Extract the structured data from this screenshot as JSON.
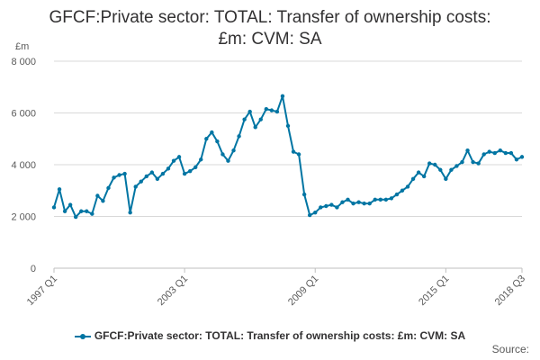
{
  "title_line1": "GFCF:Private sector: TOTAL: Transfer of ownership costs:",
  "title_line2": "£m: CVM: SA",
  "unit_label": "£m",
  "source_label": "Source:",
  "colors": {
    "series": "#0075a3",
    "grid": "#d9d9d9",
    "axis": "#bfbfbf",
    "text": "#5a5a5a"
  },
  "chart_data": {
    "type": "line",
    "title": "GFCF:Private sector: TOTAL: Transfer of ownership costs: £m: CVM: SA",
    "ylabel": "£m",
    "xlabel": "",
    "ylim": [
      0,
      8000
    ],
    "yticks": [
      0,
      2000,
      4000,
      6000,
      8000
    ],
    "ytick_labels": [
      "0",
      "2 000",
      "4 000",
      "6 000",
      "8 000"
    ],
    "xtick_labels": [
      "1997 Q1",
      "2003 Q1",
      "2009 Q1",
      "2015 Q1",
      "2018 Q3"
    ],
    "xtick_indices": [
      0,
      24,
      48,
      72,
      86
    ],
    "grid": true,
    "legend_position": "bottom",
    "series": [
      {
        "name": "GFCF:Private sector: TOTAL: Transfer of ownership costs: £m: CVM: SA",
        "x": [
          "1997 Q1",
          "1997 Q2",
          "1997 Q3",
          "1997 Q4",
          "1998 Q1",
          "1998 Q2",
          "1998 Q3",
          "1998 Q4",
          "1999 Q1",
          "1999 Q2",
          "1999 Q3",
          "1999 Q4",
          "2000 Q1",
          "2000 Q2",
          "2000 Q3",
          "2000 Q4",
          "2001 Q1",
          "2001 Q2",
          "2001 Q3",
          "2001 Q4",
          "2002 Q1",
          "2002 Q2",
          "2002 Q3",
          "2002 Q4",
          "2003 Q1",
          "2003 Q2",
          "2003 Q3",
          "2003 Q4",
          "2004 Q1",
          "2004 Q2",
          "2004 Q3",
          "2004 Q4",
          "2005 Q1",
          "2005 Q2",
          "2005 Q3",
          "2005 Q4",
          "2006 Q1",
          "2006 Q2",
          "2006 Q3",
          "2006 Q4",
          "2007 Q1",
          "2007 Q2",
          "2007 Q3",
          "2007 Q4",
          "2008 Q1",
          "2008 Q2",
          "2008 Q3",
          "2008 Q4",
          "2009 Q1",
          "2009 Q2",
          "2009 Q3",
          "2009 Q4",
          "2010 Q1",
          "2010 Q2",
          "2010 Q3",
          "2010 Q4",
          "2011 Q1",
          "2011 Q2",
          "2011 Q3",
          "2011 Q4",
          "2012 Q1",
          "2012 Q2",
          "2012 Q3",
          "2012 Q4",
          "2013 Q1",
          "2013 Q2",
          "2013 Q3",
          "2013 Q4",
          "2014 Q1",
          "2014 Q2",
          "2014 Q3",
          "2014 Q4",
          "2015 Q1",
          "2015 Q2",
          "2015 Q3",
          "2015 Q4",
          "2016 Q1",
          "2016 Q2",
          "2016 Q3",
          "2016 Q4",
          "2017 Q1",
          "2017 Q2",
          "2017 Q3",
          "2017 Q4",
          "2018 Q1",
          "2018 Q2",
          "2018 Q3"
        ],
        "values": [
          2350,
          3050,
          2200,
          2450,
          1980,
          2200,
          2200,
          2100,
          2800,
          2600,
          3100,
          3500,
          3600,
          3650,
          2150,
          3150,
          3350,
          3550,
          3700,
          3450,
          3650,
          3850,
          4150,
          4300,
          3650,
          3750,
          3900,
          4200,
          5000,
          5250,
          4900,
          4400,
          4150,
          4550,
          5100,
          5750,
          6050,
          5450,
          5750,
          6150,
          6100,
          6050,
          6650,
          5500,
          4500,
          4400,
          2850,
          2050,
          2150,
          2350,
          2400,
          2450,
          2350,
          2550,
          2650,
          2500,
          2550,
          2500,
          2500,
          2650,
          2650,
          2650,
          2700,
          2850,
          3000,
          3150,
          3450,
          3700,
          3550,
          4050,
          4000,
          3800,
          3450,
          3800,
          3950,
          4100,
          4550,
          4100,
          4050,
          4400,
          4500,
          4450,
          4550,
          4450,
          4450,
          4200,
          4300
        ]
      }
    ]
  }
}
